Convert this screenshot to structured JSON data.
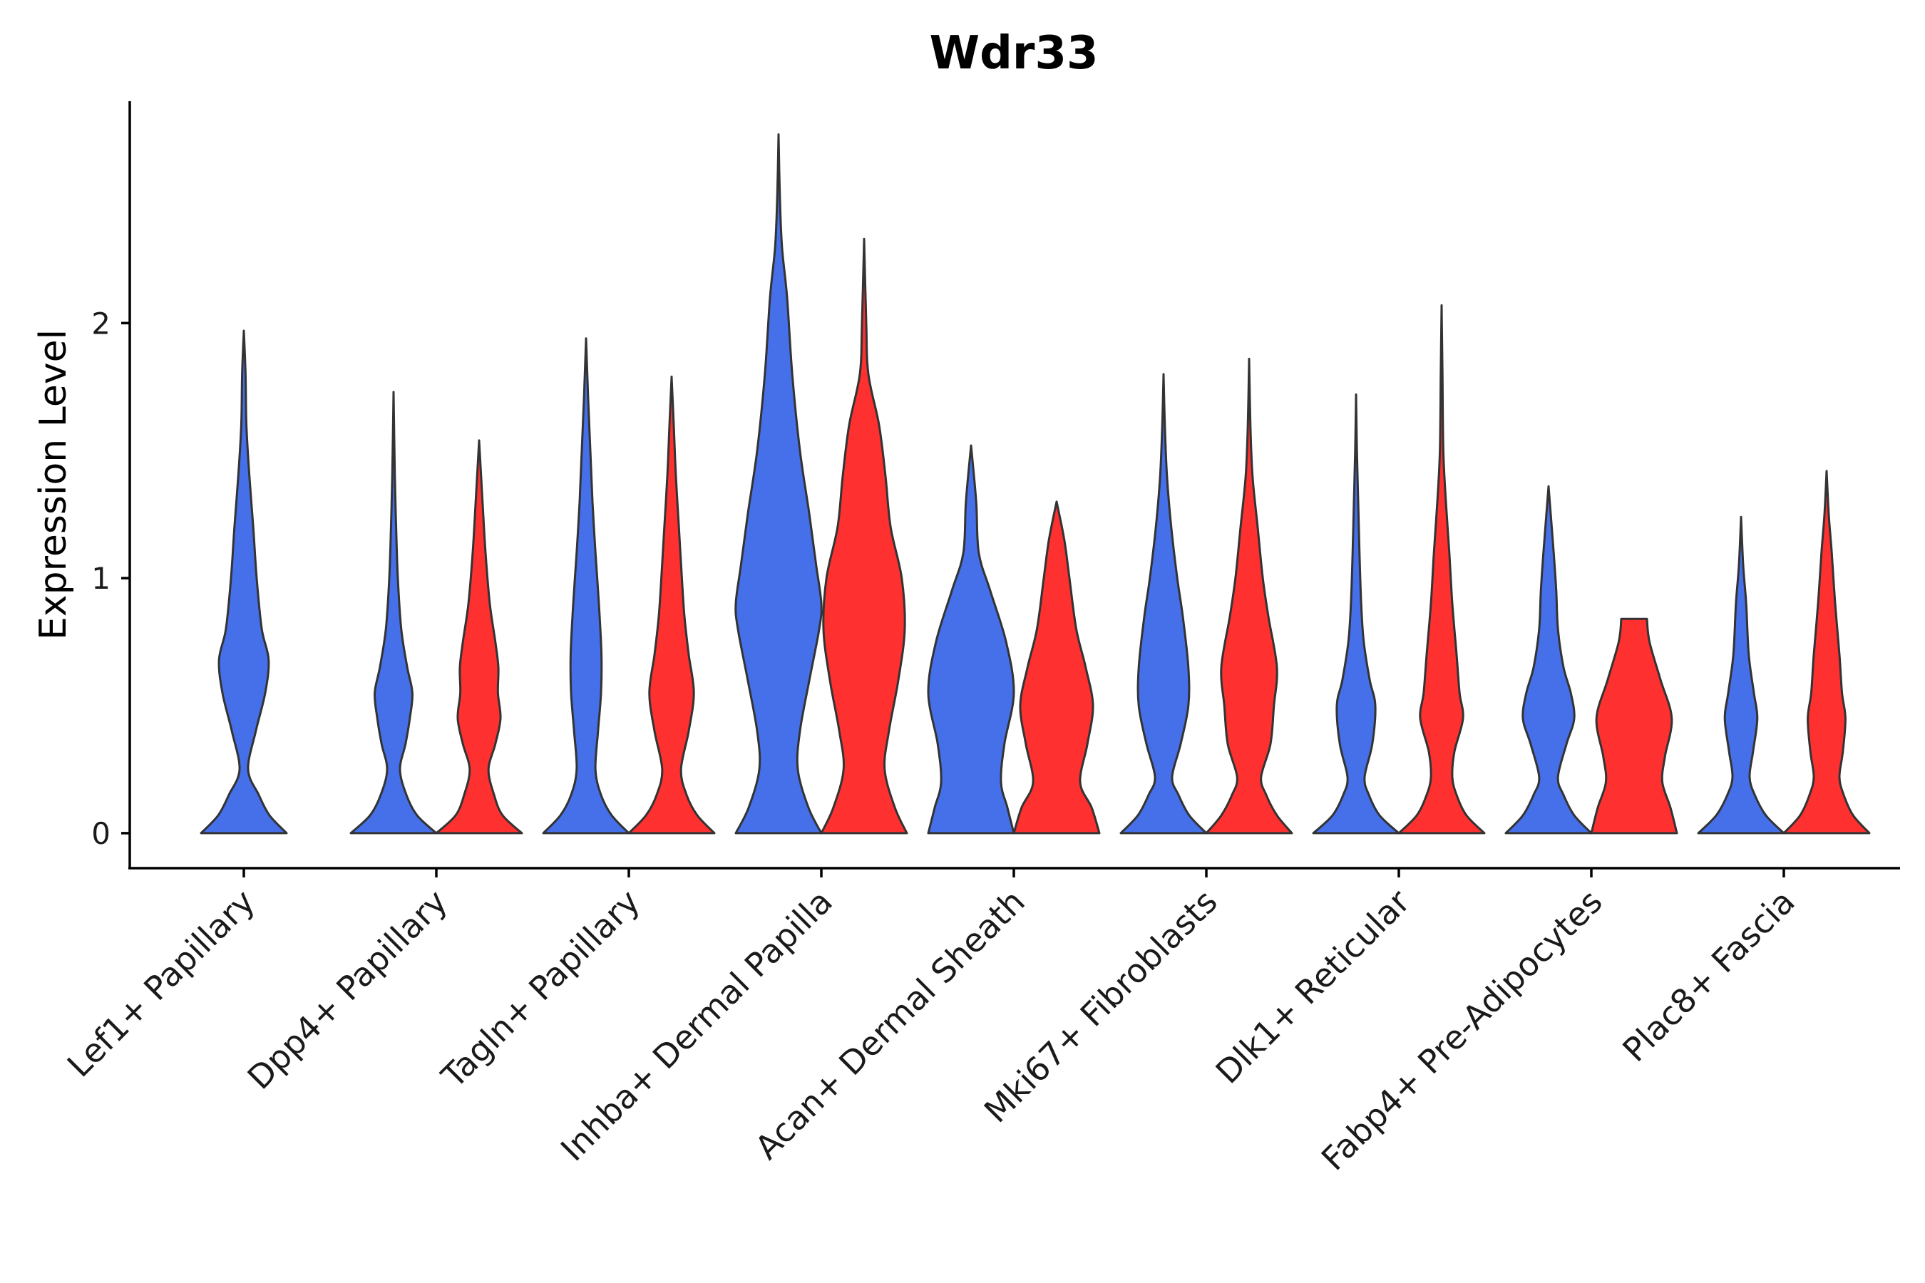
{
  "chart_data": {
    "type": "violin",
    "title": "Wdr33",
    "xlabel": "",
    "ylabel": "Expression Level",
    "ylim": [
      -0.14,
      2.87
    ],
    "yticks": [
      0,
      1,
      2
    ],
    "colors": {
      "blue": "#4570EA",
      "red": "#FF3030"
    },
    "categories": [
      "Lef1+ Papillary",
      "Dpp4+ Papillary",
      "Tagln+ Papillary",
      "Inhba+ Dermal Papilla",
      "Acan+ Dermal Sheath",
      "Mki67+ Fibroblasts",
      "Dlk1+ Reticular",
      "Fabp4+ Pre-Adipocytes",
      "Plac8+ Fascia"
    ],
    "violins": [
      {
        "category": "Lef1+ Papillary",
        "group": "blue",
        "max": 1.97,
        "profile": [
          [
            0.0,
            1.0
          ],
          [
            0.07,
            0.6
          ],
          [
            0.15,
            0.35
          ],
          [
            0.25,
            0.1
          ],
          [
            0.4,
            0.28
          ],
          [
            0.55,
            0.5
          ],
          [
            0.68,
            0.58
          ],
          [
            0.8,
            0.42
          ],
          [
            1.0,
            0.3
          ],
          [
            1.2,
            0.22
          ],
          [
            1.4,
            0.13
          ],
          [
            1.6,
            0.06
          ],
          [
            1.8,
            0.04
          ],
          [
            1.97,
            0.0
          ]
        ]
      },
      {
        "category": "Dpp4+ Papillary",
        "group": "blue",
        "max": 1.73,
        "profile": [
          [
            0.0,
            1.0
          ],
          [
            0.07,
            0.55
          ],
          [
            0.15,
            0.3
          ],
          [
            0.25,
            0.15
          ],
          [
            0.35,
            0.28
          ],
          [
            0.45,
            0.38
          ],
          [
            0.55,
            0.44
          ],
          [
            0.65,
            0.32
          ],
          [
            0.8,
            0.18
          ],
          [
            1.0,
            0.1
          ],
          [
            1.2,
            0.06
          ],
          [
            1.4,
            0.03
          ],
          [
            1.73,
            0.0
          ]
        ]
      },
      {
        "category": "Dpp4+ Papillary",
        "group": "red",
        "max": 1.54,
        "profile": [
          [
            0.0,
            1.0
          ],
          [
            0.07,
            0.55
          ],
          [
            0.15,
            0.35
          ],
          [
            0.25,
            0.22
          ],
          [
            0.35,
            0.38
          ],
          [
            0.45,
            0.5
          ],
          [
            0.55,
            0.44
          ],
          [
            0.65,
            0.45
          ],
          [
            0.75,
            0.38
          ],
          [
            0.9,
            0.25
          ],
          [
            1.1,
            0.15
          ],
          [
            1.3,
            0.08
          ],
          [
            1.54,
            0.0
          ]
        ]
      },
      {
        "category": "Tagln+ Papillary",
        "group": "blue",
        "max": 1.94,
        "profile": [
          [
            0.0,
            1.0
          ],
          [
            0.07,
            0.6
          ],
          [
            0.15,
            0.35
          ],
          [
            0.25,
            0.22
          ],
          [
            0.4,
            0.28
          ],
          [
            0.55,
            0.35
          ],
          [
            0.7,
            0.36
          ],
          [
            0.9,
            0.3
          ],
          [
            1.1,
            0.22
          ],
          [
            1.3,
            0.15
          ],
          [
            1.5,
            0.1
          ],
          [
            1.7,
            0.05
          ],
          [
            1.94,
            0.0
          ]
        ]
      },
      {
        "category": "Tagln+ Papillary",
        "group": "red",
        "max": 1.79,
        "profile": [
          [
            0.0,
            1.0
          ],
          [
            0.07,
            0.6
          ],
          [
            0.15,
            0.35
          ],
          [
            0.25,
            0.22
          ],
          [
            0.4,
            0.4
          ],
          [
            0.55,
            0.52
          ],
          [
            0.7,
            0.4
          ],
          [
            0.85,
            0.3
          ],
          [
            1.0,
            0.24
          ],
          [
            1.2,
            0.17
          ],
          [
            1.4,
            0.1
          ],
          [
            1.6,
            0.05
          ],
          [
            1.79,
            0.0
          ]
        ]
      },
      {
        "category": "Inhba+ Dermal Papilla",
        "group": "blue",
        "max": 2.74,
        "profile": [
          [
            0.0,
            1.0
          ],
          [
            0.1,
            0.7
          ],
          [
            0.25,
            0.45
          ],
          [
            0.4,
            0.5
          ],
          [
            0.6,
            0.72
          ],
          [
            0.8,
            0.95
          ],
          [
            0.9,
            1.0
          ],
          [
            1.05,
            0.88
          ],
          [
            1.25,
            0.72
          ],
          [
            1.5,
            0.5
          ],
          [
            1.8,
            0.32
          ],
          [
            2.1,
            0.2
          ],
          [
            2.3,
            0.08
          ],
          [
            2.5,
            0.03
          ],
          [
            2.74,
            0.0
          ]
        ]
      },
      {
        "category": "Inhba+ Dermal Papilla",
        "group": "red",
        "max": 2.33,
        "profile": [
          [
            0.0,
            1.0
          ],
          [
            0.1,
            0.72
          ],
          [
            0.25,
            0.48
          ],
          [
            0.4,
            0.58
          ],
          [
            0.6,
            0.8
          ],
          [
            0.8,
            0.95
          ],
          [
            1.0,
            0.88
          ],
          [
            1.2,
            0.62
          ],
          [
            1.4,
            0.5
          ],
          [
            1.6,
            0.35
          ],
          [
            1.8,
            0.1
          ],
          [
            2.0,
            0.05
          ],
          [
            2.33,
            0.0
          ]
        ]
      },
      {
        "category": "Acan+ Dermal Sheath",
        "group": "blue",
        "max": 1.52,
        "profile": [
          [
            0.0,
            1.0
          ],
          [
            0.1,
            0.85
          ],
          [
            0.2,
            0.7
          ],
          [
            0.35,
            0.78
          ],
          [
            0.55,
            1.0
          ],
          [
            0.75,
            0.82
          ],
          [
            0.95,
            0.45
          ],
          [
            1.1,
            0.18
          ],
          [
            1.3,
            0.12
          ],
          [
            1.52,
            0.0
          ]
        ]
      },
      {
        "category": "Acan+ Dermal Sheath",
        "group": "red",
        "max": 1.3,
        "profile": [
          [
            0.0,
            1.0
          ],
          [
            0.1,
            0.82
          ],
          [
            0.2,
            0.55
          ],
          [
            0.35,
            0.72
          ],
          [
            0.5,
            0.85
          ],
          [
            0.65,
            0.68
          ],
          [
            0.8,
            0.46
          ],
          [
            1.0,
            0.3
          ],
          [
            1.15,
            0.18
          ],
          [
            1.3,
            0.0
          ]
        ]
      },
      {
        "category": "Mki67+ Fibroblasts",
        "group": "blue",
        "max": 1.8,
        "profile": [
          [
            0.0,
            1.0
          ],
          [
            0.07,
            0.6
          ],
          [
            0.15,
            0.35
          ],
          [
            0.22,
            0.2
          ],
          [
            0.35,
            0.4
          ],
          [
            0.5,
            0.58
          ],
          [
            0.65,
            0.58
          ],
          [
            0.85,
            0.45
          ],
          [
            1.0,
            0.32
          ],
          [
            1.2,
            0.18
          ],
          [
            1.4,
            0.08
          ],
          [
            1.6,
            0.03
          ],
          [
            1.8,
            0.0
          ]
        ]
      },
      {
        "category": "Mki67+ Fibroblasts",
        "group": "red",
        "max": 1.86,
        "profile": [
          [
            0.0,
            1.0
          ],
          [
            0.07,
            0.65
          ],
          [
            0.15,
            0.4
          ],
          [
            0.22,
            0.28
          ],
          [
            0.35,
            0.5
          ],
          [
            0.5,
            0.58
          ],
          [
            0.65,
            0.65
          ],
          [
            0.85,
            0.45
          ],
          [
            1.0,
            0.32
          ],
          [
            1.2,
            0.2
          ],
          [
            1.4,
            0.08
          ],
          [
            1.6,
            0.03
          ],
          [
            1.86,
            0.0
          ]
        ]
      },
      {
        "category": "Dlk1+ Reticular",
        "group": "blue",
        "max": 1.72,
        "profile": [
          [
            0.0,
            1.0
          ],
          [
            0.07,
            0.55
          ],
          [
            0.15,
            0.3
          ],
          [
            0.22,
            0.2
          ],
          [
            0.35,
            0.38
          ],
          [
            0.5,
            0.45
          ],
          [
            0.6,
            0.32
          ],
          [
            0.75,
            0.18
          ],
          [
            0.9,
            0.12
          ],
          [
            1.1,
            0.08
          ],
          [
            1.3,
            0.05
          ],
          [
            1.5,
            0.02
          ],
          [
            1.72,
            0.0
          ]
        ]
      },
      {
        "category": "Dlk1+ Reticular",
        "group": "red",
        "max": 2.07,
        "profile": [
          [
            0.0,
            1.0
          ],
          [
            0.07,
            0.58
          ],
          [
            0.15,
            0.35
          ],
          [
            0.22,
            0.25
          ],
          [
            0.32,
            0.3
          ],
          [
            0.45,
            0.5
          ],
          [
            0.55,
            0.42
          ],
          [
            0.7,
            0.35
          ],
          [
            0.9,
            0.25
          ],
          [
            1.1,
            0.18
          ],
          [
            1.3,
            0.1
          ],
          [
            1.5,
            0.04
          ],
          [
            1.8,
            0.02
          ],
          [
            2.07,
            0.0
          ]
        ]
      },
      {
        "category": "Fabp4+ Pre-Adipocytes",
        "group": "blue",
        "max": 1.36,
        "profile": [
          [
            0.0,
            1.0
          ],
          [
            0.07,
            0.6
          ],
          [
            0.15,
            0.35
          ],
          [
            0.22,
            0.22
          ],
          [
            0.35,
            0.42
          ],
          [
            0.45,
            0.6
          ],
          [
            0.55,
            0.52
          ],
          [
            0.65,
            0.35
          ],
          [
            0.8,
            0.22
          ],
          [
            0.95,
            0.18
          ],
          [
            1.1,
            0.12
          ],
          [
            1.36,
            0.0
          ]
        ]
      },
      {
        "category": "Fabp4+ Pre-Adipocytes",
        "group": "red",
        "max": 0.84,
        "profile": [
          [
            0.0,
            1.0
          ],
          [
            0.1,
            0.85
          ],
          [
            0.2,
            0.66
          ],
          [
            0.3,
            0.72
          ],
          [
            0.45,
            0.88
          ],
          [
            0.6,
            0.62
          ],
          [
            0.75,
            0.36
          ],
          [
            0.84,
            0.3
          ]
        ]
      },
      {
        "category": "Plac8+ Fascia",
        "group": "blue",
        "max": 1.24,
        "profile": [
          [
            0.0,
            1.0
          ],
          [
            0.07,
            0.58
          ],
          [
            0.15,
            0.32
          ],
          [
            0.22,
            0.2
          ],
          [
            0.32,
            0.28
          ],
          [
            0.45,
            0.38
          ],
          [
            0.55,
            0.3
          ],
          [
            0.7,
            0.18
          ],
          [
            0.9,
            0.12
          ],
          [
            1.05,
            0.05
          ],
          [
            1.24,
            0.0
          ]
        ]
      },
      {
        "category": "Plac8+ Fascia",
        "group": "red",
        "max": 1.42,
        "profile": [
          [
            0.0,
            1.0
          ],
          [
            0.07,
            0.62
          ],
          [
            0.15,
            0.4
          ],
          [
            0.22,
            0.3
          ],
          [
            0.32,
            0.38
          ],
          [
            0.45,
            0.44
          ],
          [
            0.55,
            0.36
          ],
          [
            0.7,
            0.3
          ],
          [
            0.9,
            0.2
          ],
          [
            1.1,
            0.12
          ],
          [
            1.25,
            0.05
          ],
          [
            1.42,
            0.0
          ]
        ]
      }
    ]
  }
}
